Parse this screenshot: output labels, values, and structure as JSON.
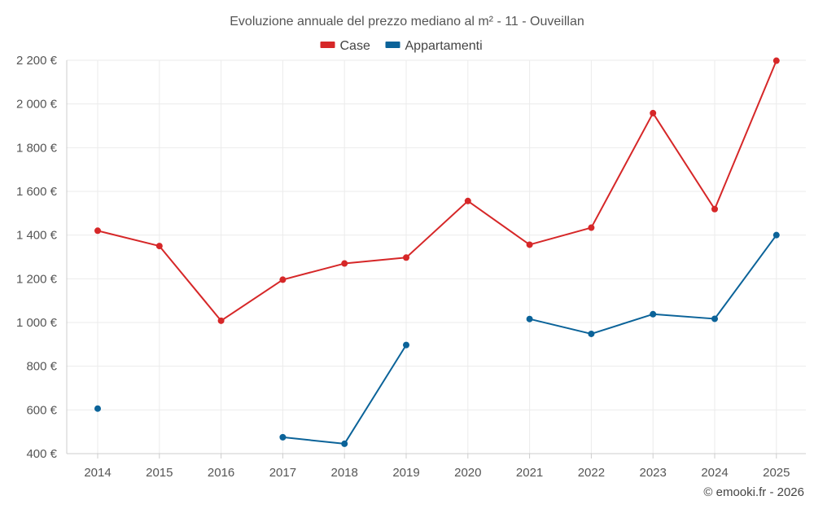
{
  "chart_data": {
    "type": "line",
    "title": "Evoluzione annuale del prezzo mediano al m² - 11 - Ouveillan",
    "categories": [
      "2014",
      "2015",
      "2016",
      "2017",
      "2018",
      "2019",
      "2020",
      "2021",
      "2022",
      "2023",
      "2024",
      "2025"
    ],
    "series": [
      {
        "name": "Case",
        "color": "#d62728",
        "values": [
          1420,
          1350,
          1008,
          1196,
          1270,
          1297,
          1556,
          1356,
          1434,
          1958,
          1519,
          2198
        ]
      },
      {
        "name": "Appartamenti",
        "color": "#0b6399",
        "values": [
          606,
          null,
          null,
          475,
          445,
          897,
          null,
          1016,
          948,
          1038,
          1017,
          1400
        ]
      }
    ],
    "ylim": [
      400,
      2200
    ],
    "yticks": [
      400,
      600,
      800,
      1000,
      1200,
      1400,
      1600,
      1800,
      2000,
      2200
    ],
    "ytick_labels": [
      "400 €",
      "600 €",
      "800 €",
      "1 000 €",
      "1 200 €",
      "1 400 €",
      "1 600 €",
      "1 800 €",
      "2 000 €",
      "2 200 €"
    ],
    "xlabel": "",
    "ylabel": "",
    "grid": true,
    "legend_position": "top-center",
    "credit": "© emooki.fr - 2026"
  }
}
